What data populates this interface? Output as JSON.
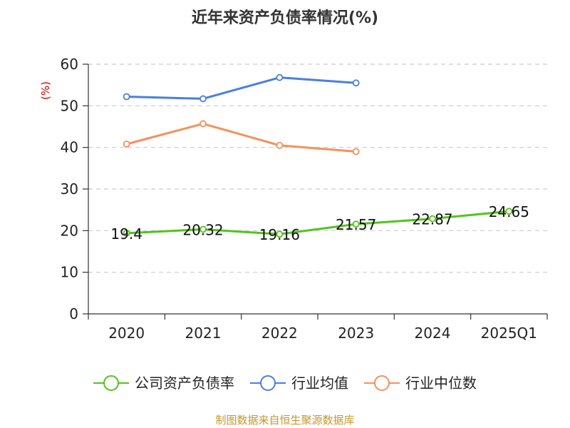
{
  "chart_data": {
    "type": "line",
    "title": "近年来资产负债率情况(%)",
    "ylabel": "(%)",
    "xlabel": "",
    "categories": [
      "2020",
      "2021",
      "2022",
      "2023",
      "2024",
      "2025Q1"
    ],
    "ylim": [
      0,
      60
    ],
    "yticks": [
      "0",
      "10",
      "20",
      "30",
      "40",
      "50",
      "60"
    ],
    "grid": true,
    "legend_position": "bottom",
    "series": [
      {
        "name": "公司资产负债率",
        "color": "#52c41a",
        "values": [
          19.4,
          20.32,
          19.16,
          21.57,
          22.87,
          24.65
        ],
        "labels": [
          "19.4",
          "20.32",
          "19.16",
          "21.57",
          "22.87",
          "24.65"
        ]
      },
      {
        "name": "行业均值",
        "color": "#4a7fde",
        "values": [
          52.2,
          51.7,
          56.8,
          55.5,
          null,
          null
        ]
      },
      {
        "name": "行业中位数",
        "color": "#f5915a",
        "values": [
          40.8,
          45.7,
          40.5,
          39.0,
          null,
          null
        ]
      }
    ]
  },
  "source_text": "制图数据来自恒生聚源数据库",
  "colors": {
    "ylabel": "#cc0000",
    "source": "#c8962d",
    "grid": "#cccccc",
    "axis": "#333333"
  }
}
